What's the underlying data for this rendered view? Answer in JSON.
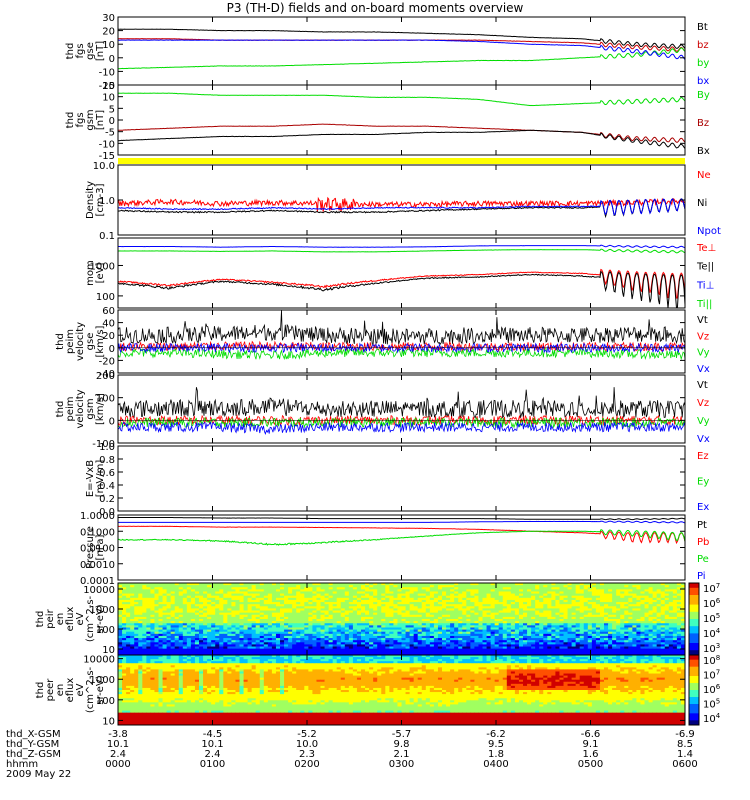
{
  "title": "P3 (TH-D) fields and on-board moments overview",
  "colors": {
    "black": "#000000",
    "red": "#ff0000",
    "green": "#00e000",
    "blue": "#0000ff",
    "yellow": "#ffff00",
    "dark_red": "#b00000"
  },
  "chart_data": [
    {
      "type": "line",
      "id": "fgs_gse",
      "ylabel": [
        "thd",
        "fgs",
        "gse",
        "[nT]"
      ],
      "ylim": [
        -20,
        30
      ],
      "yticks": [
        "30",
        "20",
        "10",
        "0",
        "-10",
        "-20"
      ],
      "series": [
        {
          "name": "Bt",
          "color": "#000000",
          "values": [
            21,
            21,
            20,
            20,
            19,
            19,
            18,
            17,
            15,
            14,
            10,
            8
          ]
        },
        {
          "name": "bz",
          "color": "#cc0000",
          "values": [
            14,
            14,
            13,
            13,
            13,
            13,
            13,
            13,
            12,
            11,
            8,
            6
          ]
        },
        {
          "name": "by",
          "color": "#00dd00",
          "values": [
            -8,
            -7,
            -6,
            -6,
            -5,
            -4,
            -3,
            -2,
            -2,
            0,
            2,
            6
          ]
        },
        {
          "name": "bx",
          "color": "#0000ff",
          "values": [
            13,
            13,
            13,
            13,
            13,
            13,
            13,
            12,
            10,
            9,
            5,
            0
          ]
        }
      ]
    },
    {
      "type": "line",
      "id": "fgs_gsm",
      "ylabel": [
        "thd",
        "fgs",
        "gsm",
        "[nT]"
      ],
      "ylim": [
        -17,
        17
      ],
      "yticks": [
        "15",
        "10",
        "5",
        "0",
        "-5",
        "-10",
        "-15"
      ],
      "series": [
        {
          "name": "By",
          "color": "#00dd00",
          "values": [
            13,
            13,
            12,
            12,
            12,
            11,
            11,
            10,
            7,
            8,
            9,
            10
          ]
        },
        {
          "name": "Bz",
          "color": "#aa0000",
          "values": [
            -5,
            -4,
            -3,
            -3,
            -2,
            -3,
            -3,
            -4,
            -5,
            -6,
            -9,
            -10
          ]
        },
        {
          "name": "Bx",
          "color": "#000000",
          "values": [
            -10,
            -9,
            -8,
            -8,
            -7,
            -7,
            -6,
            -6,
            -5,
            -6,
            -10,
            -13
          ]
        }
      ]
    },
    {
      "type": "line",
      "id": "density",
      "ylabel": [
        "Density",
        "[cm-3]"
      ],
      "ylog": true,
      "ylim": [
        0.1,
        10
      ],
      "yticks": [
        "10.0",
        "1.0",
        "0.1"
      ],
      "series": [
        {
          "name": "Ne",
          "color": "#ff0000",
          "values": [
            0.8,
            0.9,
            0.8,
            0.85,
            0.8,
            0.75,
            0.75,
            0.8,
            0.8,
            0.8,
            0.85,
            0.95
          ]
        },
        {
          "name": "Ni",
          "color": "#000000",
          "values": [
            0.5,
            0.45,
            0.45,
            0.5,
            0.45,
            0.45,
            0.5,
            0.55,
            0.6,
            0.6,
            0.7,
            0.8
          ]
        },
        {
          "name": "Npot",
          "color": "#0000ff",
          "values": [
            0.6,
            0.55,
            0.55,
            0.6,
            0.55,
            0.6,
            0.6,
            0.6,
            0.65,
            0.65,
            0.7,
            0.8
          ]
        }
      ]
    },
    {
      "type": "line",
      "id": "temperature",
      "ylabel": [
        "mom",
        "[eV]"
      ],
      "ylog": true,
      "ylim": [
        40,
        8000
      ],
      "yticks": [
        "1000",
        "100"
      ],
      "series": [
        {
          "name": "Te⊥",
          "color": "#ff0000",
          "values": [
            300,
            220,
            350,
            280,
            200,
            320,
            450,
            500,
            600,
            550,
            400,
            300
          ]
        },
        {
          "name": "Te||",
          "color": "#000000",
          "values": [
            260,
            180,
            300,
            240,
            160,
            260,
            380,
            420,
            500,
            450,
            320,
            240
          ]
        },
        {
          "name": "Ti⊥",
          "color": "#0000ff",
          "values": [
            4200,
            4200,
            4000,
            4200,
            4000,
            4000,
            4100,
            4400,
            4500,
            4500,
            4200,
            4000
          ]
        },
        {
          "name": "Ti||",
          "color": "#00dd00",
          "values": [
            3000,
            3000,
            2900,
            3000,
            2800,
            2800,
            3000,
            3200,
            3300,
            3300,
            3000,
            2800
          ]
        }
      ]
    },
    {
      "type": "line",
      "id": "peim_velocity_gse",
      "ylabel": [
        "thd",
        "peim",
        "velocity",
        "gse",
        "[km/s]"
      ],
      "ylim": [
        -40,
        60
      ],
      "yticks": [
        "60",
        "40",
        "20",
        "0",
        "-20",
        "-40"
      ],
      "series": [
        {
          "name": "Vt",
          "color": "#000000",
          "values": [
            20,
            20,
            22,
            25,
            20,
            18,
            18,
            20,
            20,
            20,
            22,
            20
          ]
        },
        {
          "name": "Vz",
          "color": "#ff0000",
          "values": [
            2,
            2,
            3,
            3,
            2,
            2,
            2,
            2,
            2,
            2,
            2,
            2
          ]
        },
        {
          "name": "Vy",
          "color": "#00dd00",
          "values": [
            -8,
            -8,
            -10,
            -12,
            -8,
            -8,
            -8,
            -8,
            -8,
            -8,
            -10,
            -12
          ]
        },
        {
          "name": "Vx",
          "color": "#0000ff",
          "values": [
            0,
            0,
            0,
            0,
            0,
            0,
            0,
            0,
            0,
            0,
            0,
            0
          ]
        }
      ]
    },
    {
      "type": "line",
      "id": "peim_velocity_gsm",
      "ylabel": [
        "thd",
        "peim",
        "velocity",
        "gsm",
        "[km/s]"
      ],
      "ylim": [
        -100,
        200
      ],
      "yticks": [
        "200",
        "100",
        "0",
        "-100"
      ],
      "series": [
        {
          "name": "Vt",
          "color": "#000000",
          "values": [
            50,
            55,
            55,
            60,
            50,
            50,
            50,
            50,
            50,
            50,
            50,
            50
          ]
        },
        {
          "name": "Vz",
          "color": "#ff0000",
          "values": [
            0,
            0,
            0,
            0,
            0,
            0,
            0,
            0,
            0,
            0,
            0,
            0
          ]
        },
        {
          "name": "Vy",
          "color": "#00dd00",
          "values": [
            -10,
            -10,
            -10,
            -10,
            -10,
            -10,
            -10,
            -10,
            -10,
            -10,
            -10,
            -10
          ]
        },
        {
          "name": "Vx",
          "color": "#0000ff",
          "values": [
            -30,
            -30,
            -30,
            -40,
            -30,
            -30,
            -30,
            -30,
            -30,
            -30,
            -30,
            -30
          ]
        }
      ]
    },
    {
      "type": "line",
      "id": "efield",
      "ylabel": [
        "E=-VxB",
        "[mV/m]"
      ],
      "ylim": [
        0,
        1
      ],
      "yticks": [
        "1.0",
        "0.8",
        "0.6",
        "0.4",
        "0.2",
        "0.0"
      ],
      "series": [
        {
          "name": "Ez",
          "color": "#ff0000",
          "values": []
        },
        {
          "name": "Ey",
          "color": "#00dd00",
          "values": []
        },
        {
          "name": "Ex",
          "color": "#0000ff",
          "values": []
        }
      ]
    },
    {
      "type": "line",
      "id": "pressure",
      "ylabel": [
        "Pressure",
        "[nPa]"
      ],
      "ylog": true,
      "ylim": [
        0.0001,
        1
      ],
      "yticks": [
        "1.0000",
        "0.1000",
        "0.0100",
        "0.0010",
        "0.0001"
      ],
      "series": [
        {
          "name": "Pt",
          "color": "#000000",
          "values": [
            0.7,
            0.7,
            0.65,
            0.65,
            0.6,
            0.6,
            0.6,
            0.6,
            0.55,
            0.55,
            0.55,
            0.6
          ]
        },
        {
          "name": "Pb",
          "color": "#ff0000",
          "values": [
            0.2,
            0.2,
            0.18,
            0.18,
            0.17,
            0.16,
            0.15,
            0.13,
            0.1,
            0.08,
            0.05,
            0.05
          ]
        },
        {
          "name": "Pe",
          "color": "#00dd00",
          "values": [
            0.03,
            0.03,
            0.025,
            0.015,
            0.02,
            0.03,
            0.05,
            0.08,
            0.1,
            0.1,
            0.08,
            0.05
          ]
        },
        {
          "name": "Pi",
          "color": "#0000ff",
          "values": [
            0.35,
            0.35,
            0.35,
            0.35,
            0.35,
            0.35,
            0.35,
            0.38,
            0.4,
            0.4,
            0.38,
            0.35
          ]
        }
      ]
    },
    {
      "type": "heatmap",
      "id": "peir_en_eflux",
      "ylabel": [
        "thd",
        "peir",
        "en",
        "eflux",
        "eV",
        "(cm^2-s-",
        "sr-eV)"
      ],
      "ylog": true,
      "ylim": [
        5,
        20000
      ],
      "yticks": [
        "10000",
        "1000",
        "100",
        "10"
      ],
      "colorbar_labels": [
        "10^7",
        "10^6",
        "10^5",
        "10^4",
        "10^3"
      ]
    },
    {
      "type": "heatmap",
      "id": "peer_en_eflux",
      "ylabel": [
        "thd",
        "peer",
        "en",
        "eflux",
        "eV",
        "(cm^2-s-",
        "sr-eV)"
      ],
      "ylog": true,
      "ylim": [
        6,
        15000
      ],
      "yticks": [
        "10000",
        "1000",
        "100",
        "10"
      ],
      "colorbar_labels": [
        "10^8",
        "10^7",
        "10^6",
        "10^5",
        "10^4"
      ]
    }
  ],
  "axis_rows": {
    "labels": [
      "thd_X-GSM",
      "thd_Y-GSM",
      "thd_Z-GSM",
      "hhmm",
      "2009 May 22"
    ],
    "x": [
      "-3.8",
      "-4.5",
      "-5.2",
      "-5.7",
      "-6.2",
      "-6.6",
      "-6.9"
    ],
    "y": [
      "10.1",
      "10.1",
      "10.0",
      "9.8",
      "9.5",
      "9.1",
      "8.5"
    ],
    "z": [
      "2.4",
      "2.4",
      "2.3",
      "2.1",
      "1.8",
      "1.6",
      "1.4"
    ],
    "time": [
      "0000",
      "0100",
      "0200",
      "0300",
      "0400",
      "0500",
      "0600"
    ]
  }
}
